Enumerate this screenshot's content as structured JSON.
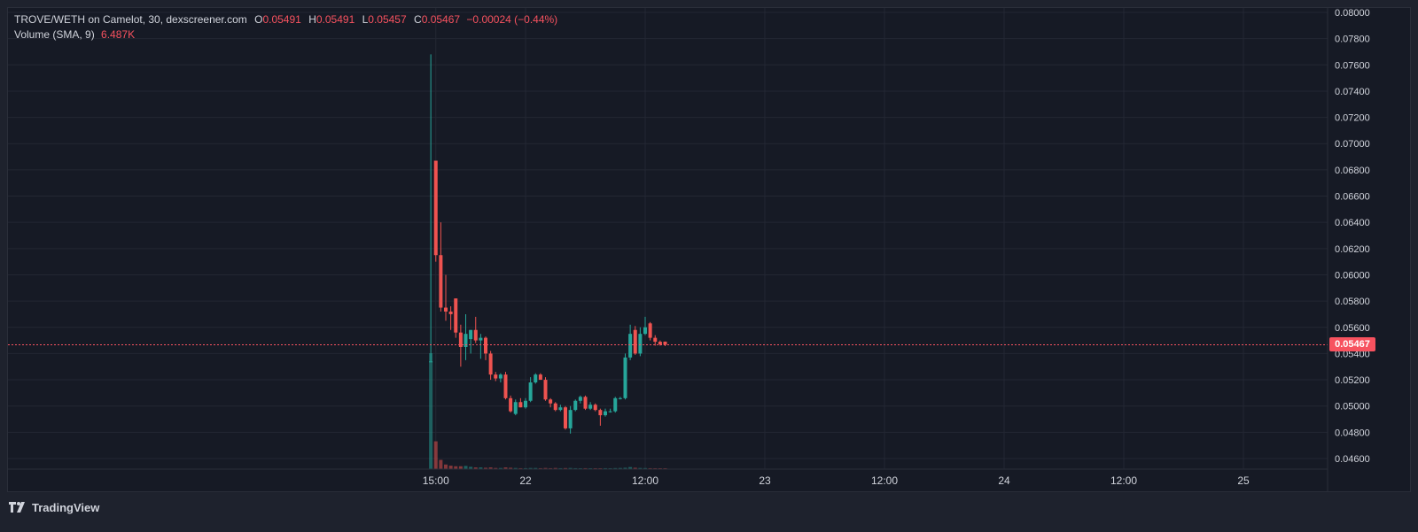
{
  "legend": {
    "symbol": "TROVE/WETH on Camelot, 30, dexscreener.com",
    "o_label": "O",
    "o_value": "0.05491",
    "h_label": "H",
    "h_value": "0.05491",
    "l_label": "L",
    "l_value": "0.05457",
    "c_label": "C",
    "c_value": "0.05467",
    "change": "−0.00024 (−0.44%)",
    "volume_label": "Volume (SMA, 9)",
    "volume_value": "6.487K"
  },
  "last_price_badge": "0.05467",
  "branding": "TradingView",
  "colors": {
    "up": "#26a69a",
    "down": "#ef5350",
    "background": "#161a25",
    "grid": "#232733",
    "text": "#d1d4dc"
  },
  "chart_data": {
    "type": "candlestick",
    "interval_minutes": 30,
    "ylim": [
      0.045,
      0.08
    ],
    "y_ticks": [
      "0.04600",
      "0.04800",
      "0.05000",
      "0.05200",
      "0.05400",
      "0.05600",
      "0.05800",
      "0.06000",
      "0.06200",
      "0.06400",
      "0.06600",
      "0.06800",
      "0.07000",
      "0.07200",
      "0.07400",
      "0.07600",
      "0.07800",
      "0.08000"
    ],
    "x_tick_labels": [
      {
        "label": "15:00",
        "t": "21 15:00"
      },
      {
        "label": "22",
        "t": "22 00:00"
      },
      {
        "label": "12:00",
        "t": "22 12:00"
      },
      {
        "label": "23",
        "t": "23 00:00"
      },
      {
        "label": "12:00",
        "t": "23 12:00"
      },
      {
        "label": "24",
        "t": "24 00:00"
      },
      {
        "label": "12:00",
        "t": "24 12:00"
      },
      {
        "label": "25",
        "t": "25 00:00"
      }
    ],
    "last_price": 0.05467,
    "candles": [
      {
        "t": "21 14:30",
        "o": 0.0534,
        "h": 0.0768,
        "l": 0.0534,
        "c": 0.0534,
        "v": 100
      },
      {
        "t": "21 15:00",
        "o": 0.0687,
        "h": 0.0687,
        "l": 0.061,
        "c": 0.0615,
        "v": 24
      },
      {
        "t": "21 15:30",
        "o": 0.0615,
        "h": 0.064,
        "l": 0.0572,
        "c": 0.0575,
        "v": 8
      },
      {
        "t": "21 16:00",
        "o": 0.0575,
        "h": 0.06,
        "l": 0.0565,
        "c": 0.0572,
        "v": 4
      },
      {
        "t": "21 16:30",
        "o": 0.0572,
        "h": 0.0576,
        "l": 0.0558,
        "c": 0.057,
        "v": 3
      },
      {
        "t": "21 17:00",
        "o": 0.0582,
        "h": 0.0582,
        "l": 0.0552,
        "c": 0.0556,
        "v": 2.5
      },
      {
        "t": "21 17:30",
        "o": 0.0556,
        "h": 0.0562,
        "l": 0.053,
        "c": 0.0545,
        "v": 2.5
      },
      {
        "t": "21 18:00",
        "o": 0.0545,
        "h": 0.057,
        "l": 0.0535,
        "c": 0.0555,
        "v": 2.8
      },
      {
        "t": "21 18:30",
        "o": 0.0551,
        "h": 0.0558,
        "l": 0.054,
        "c": 0.0558,
        "v": 2
      },
      {
        "t": "21 19:00",
        "o": 0.0558,
        "h": 0.0568,
        "l": 0.0548,
        "c": 0.055,
        "v": 1.5
      },
      {
        "t": "21 19:30",
        "o": 0.055,
        "h": 0.0555,
        "l": 0.0536,
        "c": 0.0552,
        "v": 1.5
      },
      {
        "t": "21 20:00",
        "o": 0.0552,
        "h": 0.0553,
        "l": 0.0535,
        "c": 0.054,
        "v": 1.2
      },
      {
        "t": "21 20:30",
        "o": 0.054,
        "h": 0.0542,
        "l": 0.052,
        "c": 0.0524,
        "v": 1.5
      },
      {
        "t": "21 21:00",
        "o": 0.0524,
        "h": 0.0526,
        "l": 0.0519,
        "c": 0.0521,
        "v": 1
      },
      {
        "t": "21 21:30",
        "o": 0.0521,
        "h": 0.0525,
        "l": 0.0518,
        "c": 0.0524,
        "v": 1
      },
      {
        "t": "21 22:00",
        "o": 0.0524,
        "h": 0.0526,
        "l": 0.0505,
        "c": 0.0506,
        "v": 1.5
      },
      {
        "t": "21 22:30",
        "o": 0.0506,
        "h": 0.0508,
        "l": 0.0495,
        "c": 0.0496,
        "v": 1.2
      },
      {
        "t": "21 23:00",
        "o": 0.0494,
        "h": 0.0505,
        "l": 0.0493,
        "c": 0.0503,
        "v": 1
      },
      {
        "t": "21 23:30",
        "o": 0.0503,
        "h": 0.0506,
        "l": 0.0499,
        "c": 0.0499,
        "v": 0.8
      },
      {
        "t": "22 00:00",
        "o": 0.0499,
        "h": 0.0506,
        "l": 0.0498,
        "c": 0.0504,
        "v": 0.8
      },
      {
        "t": "22 00:30",
        "o": 0.0504,
        "h": 0.0522,
        "l": 0.0503,
        "c": 0.0518,
        "v": 1
      },
      {
        "t": "22 01:00",
        "o": 0.0518,
        "h": 0.0525,
        "l": 0.0517,
        "c": 0.0524,
        "v": 1
      },
      {
        "t": "22 01:30",
        "o": 0.0524,
        "h": 0.0525,
        "l": 0.052,
        "c": 0.052,
        "v": 0.8
      },
      {
        "t": "22 02:00",
        "o": 0.052,
        "h": 0.0522,
        "l": 0.0504,
        "c": 0.0505,
        "v": 1
      },
      {
        "t": "22 02:30",
        "o": 0.0505,
        "h": 0.0506,
        "l": 0.0499,
        "c": 0.0502,
        "v": 0.8
      },
      {
        "t": "22 03:00",
        "o": 0.0502,
        "h": 0.0503,
        "l": 0.0496,
        "c": 0.0497,
        "v": 1
      },
      {
        "t": "22 03:30",
        "o": 0.0497,
        "h": 0.0501,
        "l": 0.0496,
        "c": 0.0499,
        "v": 0.8
      },
      {
        "t": "22 04:00",
        "o": 0.0499,
        "h": 0.05,
        "l": 0.0482,
        "c": 0.0483,
        "v": 0.9
      },
      {
        "t": "22 04:30",
        "o": 0.0483,
        "h": 0.05,
        "l": 0.0479,
        "c": 0.0497,
        "v": 1
      },
      {
        "t": "22 05:00",
        "o": 0.0497,
        "h": 0.0505,
        "l": 0.0496,
        "c": 0.0504,
        "v": 0.8
      },
      {
        "t": "22 05:30",
        "o": 0.0504,
        "h": 0.0508,
        "l": 0.0502,
        "c": 0.0507,
        "v": 0.7
      },
      {
        "t": "22 06:00",
        "o": 0.0507,
        "h": 0.0508,
        "l": 0.0497,
        "c": 0.0498,
        "v": 0.8
      },
      {
        "t": "22 06:30",
        "o": 0.0498,
        "h": 0.0503,
        "l": 0.0497,
        "c": 0.0501,
        "v": 0.7
      },
      {
        "t": "22 07:00",
        "o": 0.0501,
        "h": 0.0502,
        "l": 0.0496,
        "c": 0.0497,
        "v": 0.7
      },
      {
        "t": "22 07:30",
        "o": 0.0497,
        "h": 0.0498,
        "l": 0.0485,
        "c": 0.0493,
        "v": 0.7
      },
      {
        "t": "22 08:00",
        "o": 0.0493,
        "h": 0.0498,
        "l": 0.0492,
        "c": 0.0496,
        "v": 0.8
      },
      {
        "t": "22 08:30",
        "o": 0.0496,
        "h": 0.0498,
        "l": 0.0495,
        "c": 0.0496,
        "v": 0.7
      },
      {
        "t": "22 09:00",
        "o": 0.0496,
        "h": 0.0507,
        "l": 0.0495,
        "c": 0.0506,
        "v": 0.9
      },
      {
        "t": "22 09:30",
        "o": 0.0506,
        "h": 0.0507,
        "l": 0.0505,
        "c": 0.0506,
        "v": 1
      },
      {
        "t": "22 10:00",
        "o": 0.0506,
        "h": 0.054,
        "l": 0.0505,
        "c": 0.0537,
        "v": 1.2
      },
      {
        "t": "22 10:30",
        "o": 0.0537,
        "h": 0.0562,
        "l": 0.0535,
        "c": 0.0555,
        "v": 1.8
      },
      {
        "t": "22 11:00",
        "o": 0.0558,
        "h": 0.0561,
        "l": 0.0539,
        "c": 0.054,
        "v": 1.2
      },
      {
        "t": "22 11:30",
        "o": 0.054,
        "h": 0.056,
        "l": 0.0538,
        "c": 0.0555,
        "v": 1
      },
      {
        "t": "22 12:00",
        "o": 0.0555,
        "h": 0.0568,
        "l": 0.0554,
        "c": 0.056,
        "v": 0.9
      },
      {
        "t": "22 12:30",
        "o": 0.0563,
        "h": 0.0564,
        "l": 0.055,
        "c": 0.0552,
        "v": 0.8
      },
      {
        "t": "22 13:00",
        "o": 0.0552,
        "h": 0.0554,
        "l": 0.0546,
        "c": 0.0549,
        "v": 0.6
      },
      {
        "t": "22 13:30",
        "o": 0.0549,
        "h": 0.055,
        "l": 0.0546,
        "c": 0.0547,
        "v": 0.5
      },
      {
        "t": "22 14:00",
        "o": 0.05491,
        "h": 0.05491,
        "l": 0.05457,
        "c": 0.05467,
        "v": 0.4
      }
    ]
  }
}
